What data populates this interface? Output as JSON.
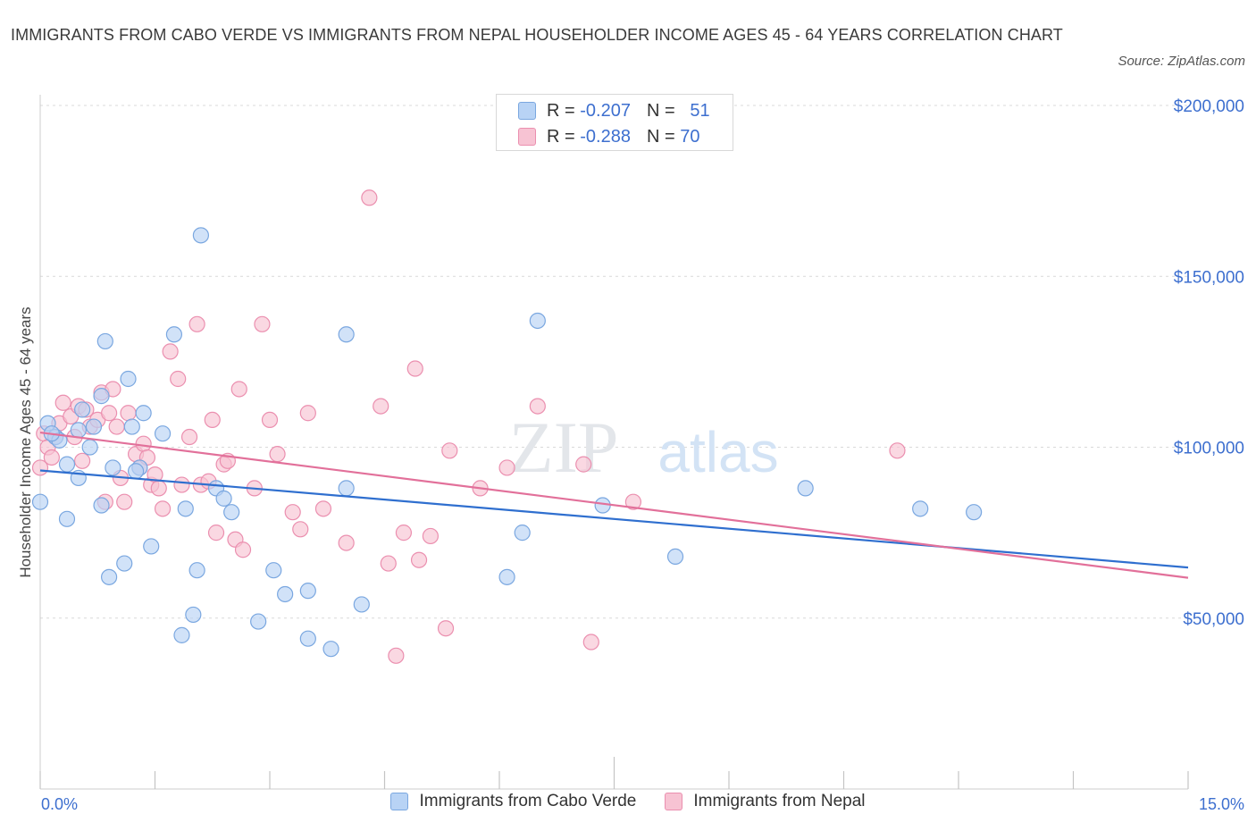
{
  "title": "IMMIGRANTS FROM CABO VERDE VS IMMIGRANTS FROM NEPAL HOUSEHOLDER INCOME AGES 45 - 64 YEARS CORRELATION CHART",
  "source": "Source: ZipAtlas.com",
  "watermark": {
    "zip": "ZIP",
    "atlas": "atlas"
  },
  "colors": {
    "blue_fill": "#b8d3f5",
    "blue_stroke": "#7aa7e0",
    "blue_line": "#2f6fcf",
    "pink_fill": "#f7c3d3",
    "pink_stroke": "#eb8faf",
    "pink_line": "#e2709a",
    "axis_text": "#3d6fcf",
    "grid": "#d9d9d9"
  },
  "stats": [
    {
      "r_label": "R =",
      "r_value": "-0.207",
      "n_label": "N =",
      "n_value": "51",
      "color": "blue"
    },
    {
      "r_label": "R =",
      "r_value": "-0.288",
      "n_label": "N =",
      "n_value": "70",
      "color": "pink"
    }
  ],
  "legend": {
    "blue": "Immigrants from Cabo Verde",
    "pink": "Immigrants from Nepal"
  },
  "x_axis": {
    "min_label": "0.0%",
    "max_label": "15.0%"
  },
  "chart_data": {
    "type": "scatter",
    "title": "IMMIGRANTS FROM CABO VERDE VS IMMIGRANTS FROM NEPAL HOUSEHOLDER INCOME AGES 45 - 64 YEARS CORRELATION CHART",
    "xlabel": "",
    "ylabel": "Householder Income Ages 45 - 64 years",
    "xlim": [
      0,
      15
    ],
    "ylim": [
      0,
      200000
    ],
    "yticks": [
      50000,
      100000,
      150000,
      200000
    ],
    "ytick_labels": [
      "$50,000",
      "$100,000",
      "$150,000",
      "$200,000"
    ],
    "x_unit": "%",
    "grid": true,
    "series": [
      {
        "name": "Immigrants from Cabo Verde",
        "color": "blue",
        "trend": {
          "x": [
            0.0,
            15.0
          ],
          "y": [
            93200,
            64800
          ]
        },
        "points": [
          [
            0.0,
            84000
          ],
          [
            0.1,
            107000
          ],
          [
            0.2,
            103000
          ],
          [
            0.25,
            102000
          ],
          [
            0.35,
            95000
          ],
          [
            0.35,
            79000
          ],
          [
            0.5,
            91000
          ],
          [
            0.5,
            105000
          ],
          [
            0.55,
            111000
          ],
          [
            0.65,
            100000
          ],
          [
            0.7,
            106000
          ],
          [
            0.8,
            115000
          ],
          [
            0.8,
            83000
          ],
          [
            0.85,
            131000
          ],
          [
            0.9,
            62000
          ],
          [
            0.95,
            94000
          ],
          [
            1.1,
            66000
          ],
          [
            1.15,
            120000
          ],
          [
            1.2,
            106000
          ],
          [
            1.3,
            94000
          ],
          [
            1.35,
            110000
          ],
          [
            1.45,
            71000
          ],
          [
            1.6,
            104000
          ],
          [
            1.75,
            133000
          ],
          [
            1.85,
            45000
          ],
          [
            1.9,
            82000
          ],
          [
            2.0,
            51000
          ],
          [
            2.05,
            64000
          ],
          [
            2.1,
            162000
          ],
          [
            2.3,
            88000
          ],
          [
            2.4,
            85000
          ],
          [
            2.5,
            81000
          ],
          [
            2.85,
            49000
          ],
          [
            3.05,
            64000
          ],
          [
            3.2,
            57000
          ],
          [
            3.5,
            44000
          ],
          [
            3.5,
            58000
          ],
          [
            3.8,
            41000
          ],
          [
            4.0,
            88000
          ],
          [
            4.0,
            133000
          ],
          [
            4.2,
            54000
          ],
          [
            6.1,
            62000
          ],
          [
            6.3,
            75000
          ],
          [
            6.5,
            137000
          ],
          [
            7.35,
            83000
          ],
          [
            8.3,
            68000
          ],
          [
            10.0,
            88000
          ],
          [
            11.5,
            82000
          ],
          [
            12.2,
            81000
          ],
          [
            0.15,
            104000
          ],
          [
            1.25,
            93000
          ]
        ]
      },
      {
        "name": "Immigrants from Nepal",
        "color": "pink",
        "trend": {
          "x": [
            0.0,
            15.0
          ],
          "y": [
            104300,
            61800
          ]
        },
        "points": [
          [
            0.0,
            94000
          ],
          [
            0.05,
            104000
          ],
          [
            0.1,
            100000
          ],
          [
            0.15,
            97000
          ],
          [
            0.2,
            103000
          ],
          [
            0.25,
            107000
          ],
          [
            0.3,
            113000
          ],
          [
            0.4,
            109000
          ],
          [
            0.45,
            103000
          ],
          [
            0.5,
            112000
          ],
          [
            0.6,
            111000
          ],
          [
            0.65,
            106000
          ],
          [
            0.75,
            108000
          ],
          [
            0.8,
            116000
          ],
          [
            0.85,
            84000
          ],
          [
            0.9,
            110000
          ],
          [
            0.95,
            117000
          ],
          [
            1.0,
            106000
          ],
          [
            1.05,
            91000
          ],
          [
            1.1,
            84000
          ],
          [
            1.15,
            110000
          ],
          [
            1.25,
            98000
          ],
          [
            1.3,
            94000
          ],
          [
            1.35,
            101000
          ],
          [
            1.4,
            97000
          ],
          [
            1.45,
            89000
          ],
          [
            1.5,
            92000
          ],
          [
            1.55,
            88000
          ],
          [
            1.6,
            82000
          ],
          [
            1.7,
            128000
          ],
          [
            1.8,
            120000
          ],
          [
            1.85,
            89000
          ],
          [
            1.95,
            103000
          ],
          [
            2.05,
            136000
          ],
          [
            2.1,
            89000
          ],
          [
            2.2,
            90000
          ],
          [
            2.25,
            108000
          ],
          [
            2.3,
            75000
          ],
          [
            2.4,
            95000
          ],
          [
            2.45,
            96000
          ],
          [
            2.55,
            73000
          ],
          [
            2.6,
            117000
          ],
          [
            2.65,
            70000
          ],
          [
            2.8,
            88000
          ],
          [
            2.9,
            136000
          ],
          [
            3.0,
            108000
          ],
          [
            3.1,
            98000
          ],
          [
            3.3,
            81000
          ],
          [
            3.4,
            76000
          ],
          [
            3.5,
            110000
          ],
          [
            3.7,
            82000
          ],
          [
            4.0,
            72000
          ],
          [
            4.3,
            173000
          ],
          [
            4.45,
            112000
          ],
          [
            4.55,
            66000
          ],
          [
            4.65,
            39000
          ],
          [
            4.75,
            75000
          ],
          [
            4.9,
            123000
          ],
          [
            4.95,
            67000
          ],
          [
            5.1,
            74000
          ],
          [
            5.3,
            47000
          ],
          [
            5.35,
            99000
          ],
          [
            5.75,
            88000
          ],
          [
            6.1,
            94000
          ],
          [
            6.5,
            112000
          ],
          [
            7.1,
            95000
          ],
          [
            7.2,
            43000
          ],
          [
            7.75,
            84000
          ],
          [
            11.2,
            99000
          ],
          [
            0.55,
            96000
          ]
        ]
      }
    ]
  }
}
